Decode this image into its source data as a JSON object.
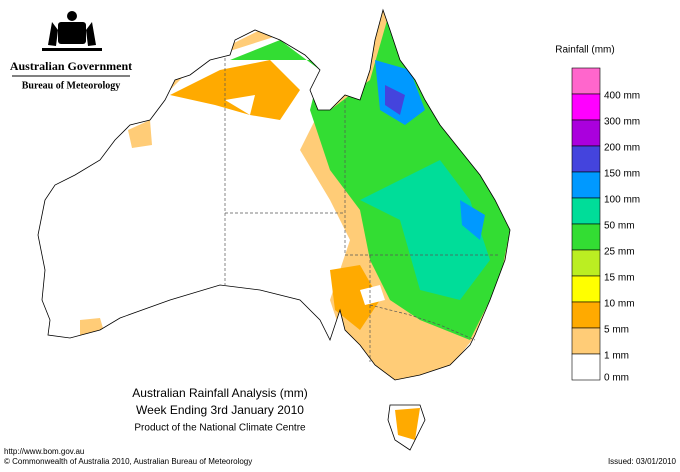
{
  "header": {
    "agency": "Australian Government",
    "bureau": "Bureau of Meteorology"
  },
  "legend": {
    "title": "Rainfall (mm)",
    "items": [
      {
        "label": null,
        "color": "#ff66cc"
      },
      {
        "label": "400 mm",
        "color": "#ff00ff"
      },
      {
        "label": "300 mm",
        "color": "#aa00dd"
      },
      {
        "label": "200 mm",
        "color": "#4444dd"
      },
      {
        "label": "150 mm",
        "color": "#0099ff"
      },
      {
        "label": "100 mm",
        "color": "#00dd99"
      },
      {
        "label": "50 mm",
        "color": "#33dd33"
      },
      {
        "label": "25 mm",
        "color": "#bbee22"
      },
      {
        "label": "15 mm",
        "color": "#ffff00"
      },
      {
        "label": "10 mm",
        "color": "#ffaa00"
      },
      {
        "label": "5 mm",
        "color": "#ffcc77"
      },
      {
        "label": "1 mm",
        "color": "#ffffff"
      }
    ],
    "bottom_label": "0 mm"
  },
  "caption": {
    "title": "Australian Rainfall Analysis (mm)",
    "period": "Week Ending 3rd January 2010",
    "product": "Product of the National Climate Centre"
  },
  "footer": {
    "url": "http://www.bom.gov.au",
    "copyright": "© Commonwealth of Australia 2010, Australian Bureau of Meteorology",
    "issued": "Issued: 03/01/2010"
  }
}
